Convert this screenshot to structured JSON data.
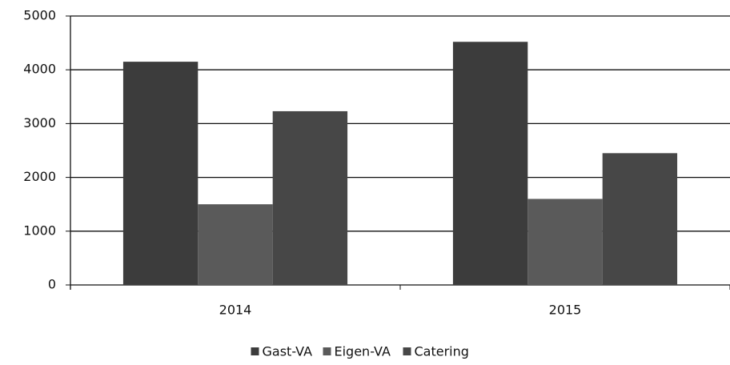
{
  "chart_data": {
    "type": "bar",
    "categories": [
      "2014",
      "2015"
    ],
    "series": [
      {
        "name": "Gast-VA",
        "color": "#3c3c3c",
        "values": [
          4150,
          4520
        ]
      },
      {
        "name": "Eigen-VA",
        "color": "#5a5a5a",
        "values": [
          1500,
          1600
        ]
      },
      {
        "name": "Catering",
        "color": "#474747",
        "values": [
          3230,
          2450
        ]
      }
    ],
    "ylim": [
      0,
      5000
    ],
    "yticks": [
      0,
      1000,
      2000,
      3000,
      4000,
      5000
    ],
    "grid": true,
    "legend": "bottom"
  }
}
